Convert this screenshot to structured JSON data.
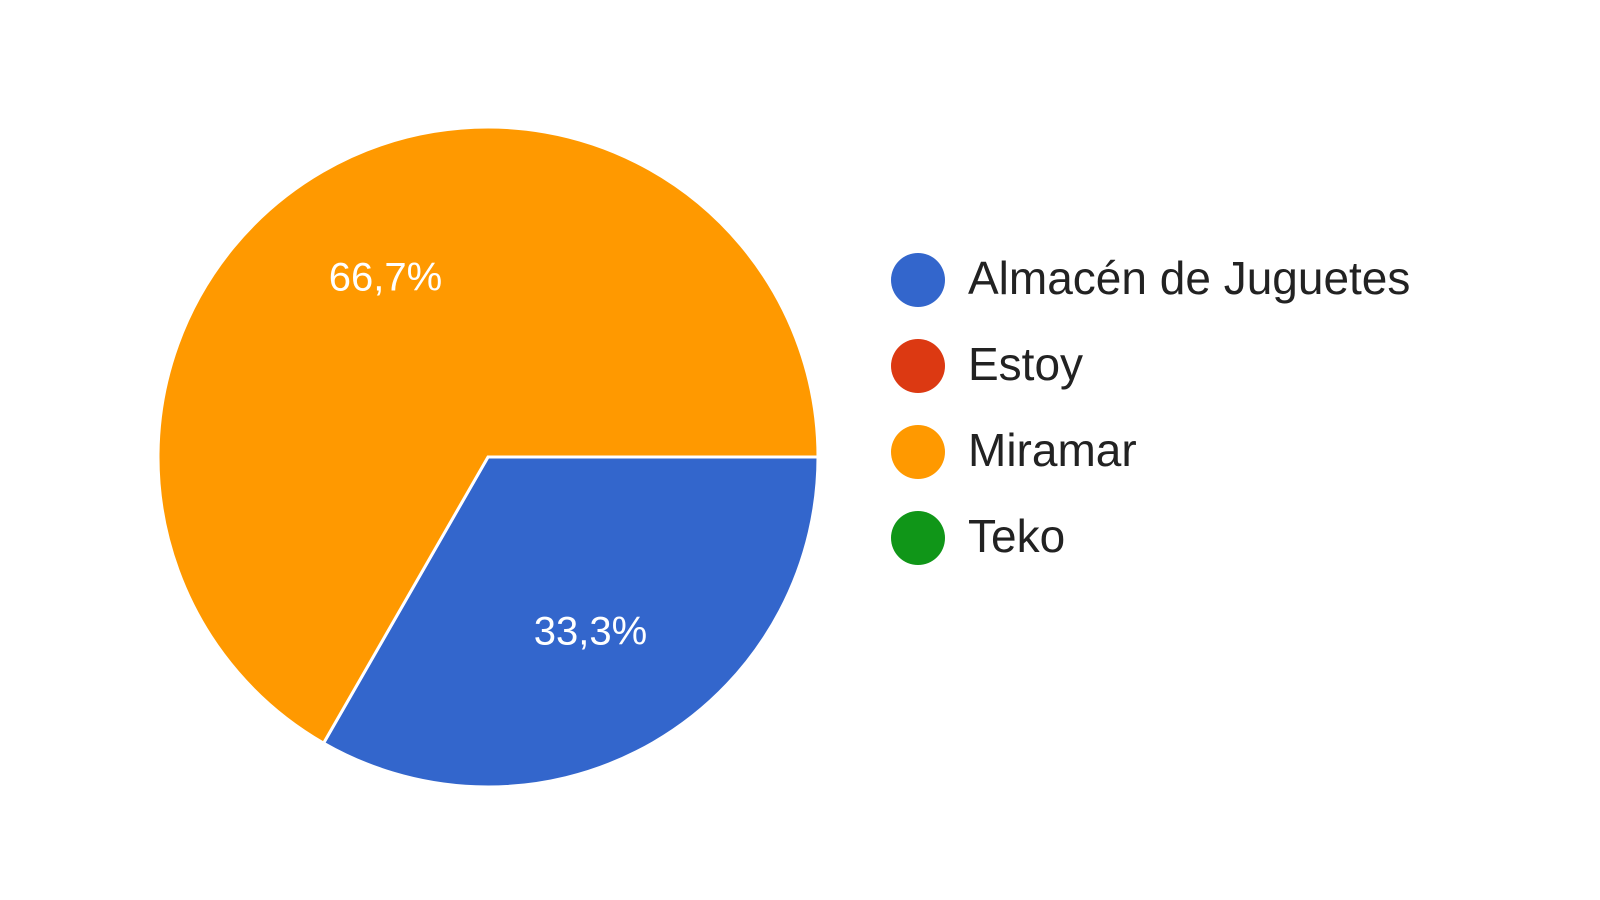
{
  "chart_data": {
    "type": "pie",
    "categories": [
      "Almacén de Juguetes",
      "Estoy",
      "Miramar",
      "Teko"
    ],
    "values": [
      33.3,
      0,
      66.7,
      0
    ],
    "value_labels": [
      "33,3%",
      null,
      "66,7%",
      null
    ],
    "colors": [
      "#3366cc",
      "#dc3912",
      "#ff9900",
      "#109618"
    ],
    "legend": "right"
  }
}
